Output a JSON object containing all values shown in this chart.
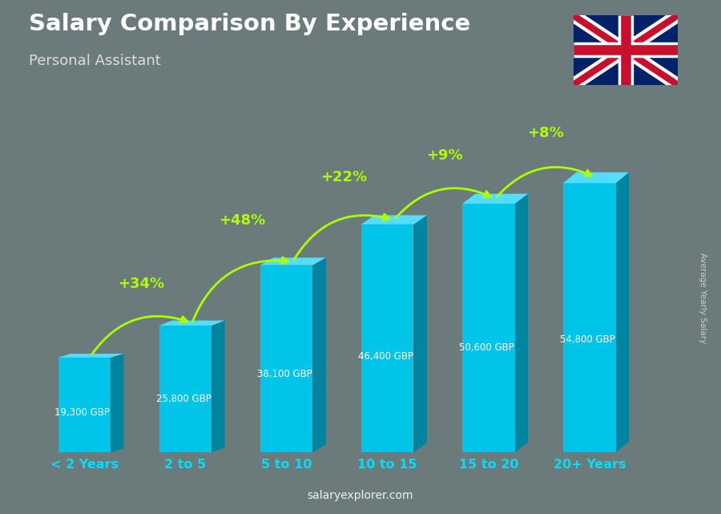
{
  "title": "Salary Comparison By Experience",
  "subtitle": "Personal Assistant",
  "categories": [
    "< 2 Years",
    "2 to 5",
    "5 to 10",
    "10 to 15",
    "15 to 20",
    "20+ Years"
  ],
  "values": [
    19300,
    25800,
    38100,
    46400,
    50600,
    54800
  ],
  "value_labels": [
    "19,300 GBP",
    "25,800 GBP",
    "38,100 GBP",
    "46,400 GBP",
    "50,600 GBP",
    "54,800 GBP"
  ],
  "pct_labels": [
    "+34%",
    "+48%",
    "+22%",
    "+9%",
    "+8%"
  ],
  "bar_face": "#00C5E8",
  "bar_side": "#0085A0",
  "bar_top": "#55DDFF",
  "bg_color": "#6b7b7b",
  "title_color": "#ffffff",
  "subtitle_color": "#dddddd",
  "value_color": "#ffffff",
  "pct_color": "#aaff00",
  "xtick_color": "#00DFFF",
  "ylabel": "Average Yearly Salary",
  "watermark_bold": "salary",
  "watermark_rest": "explorer.com",
  "ylabel_color": "#cccccc"
}
